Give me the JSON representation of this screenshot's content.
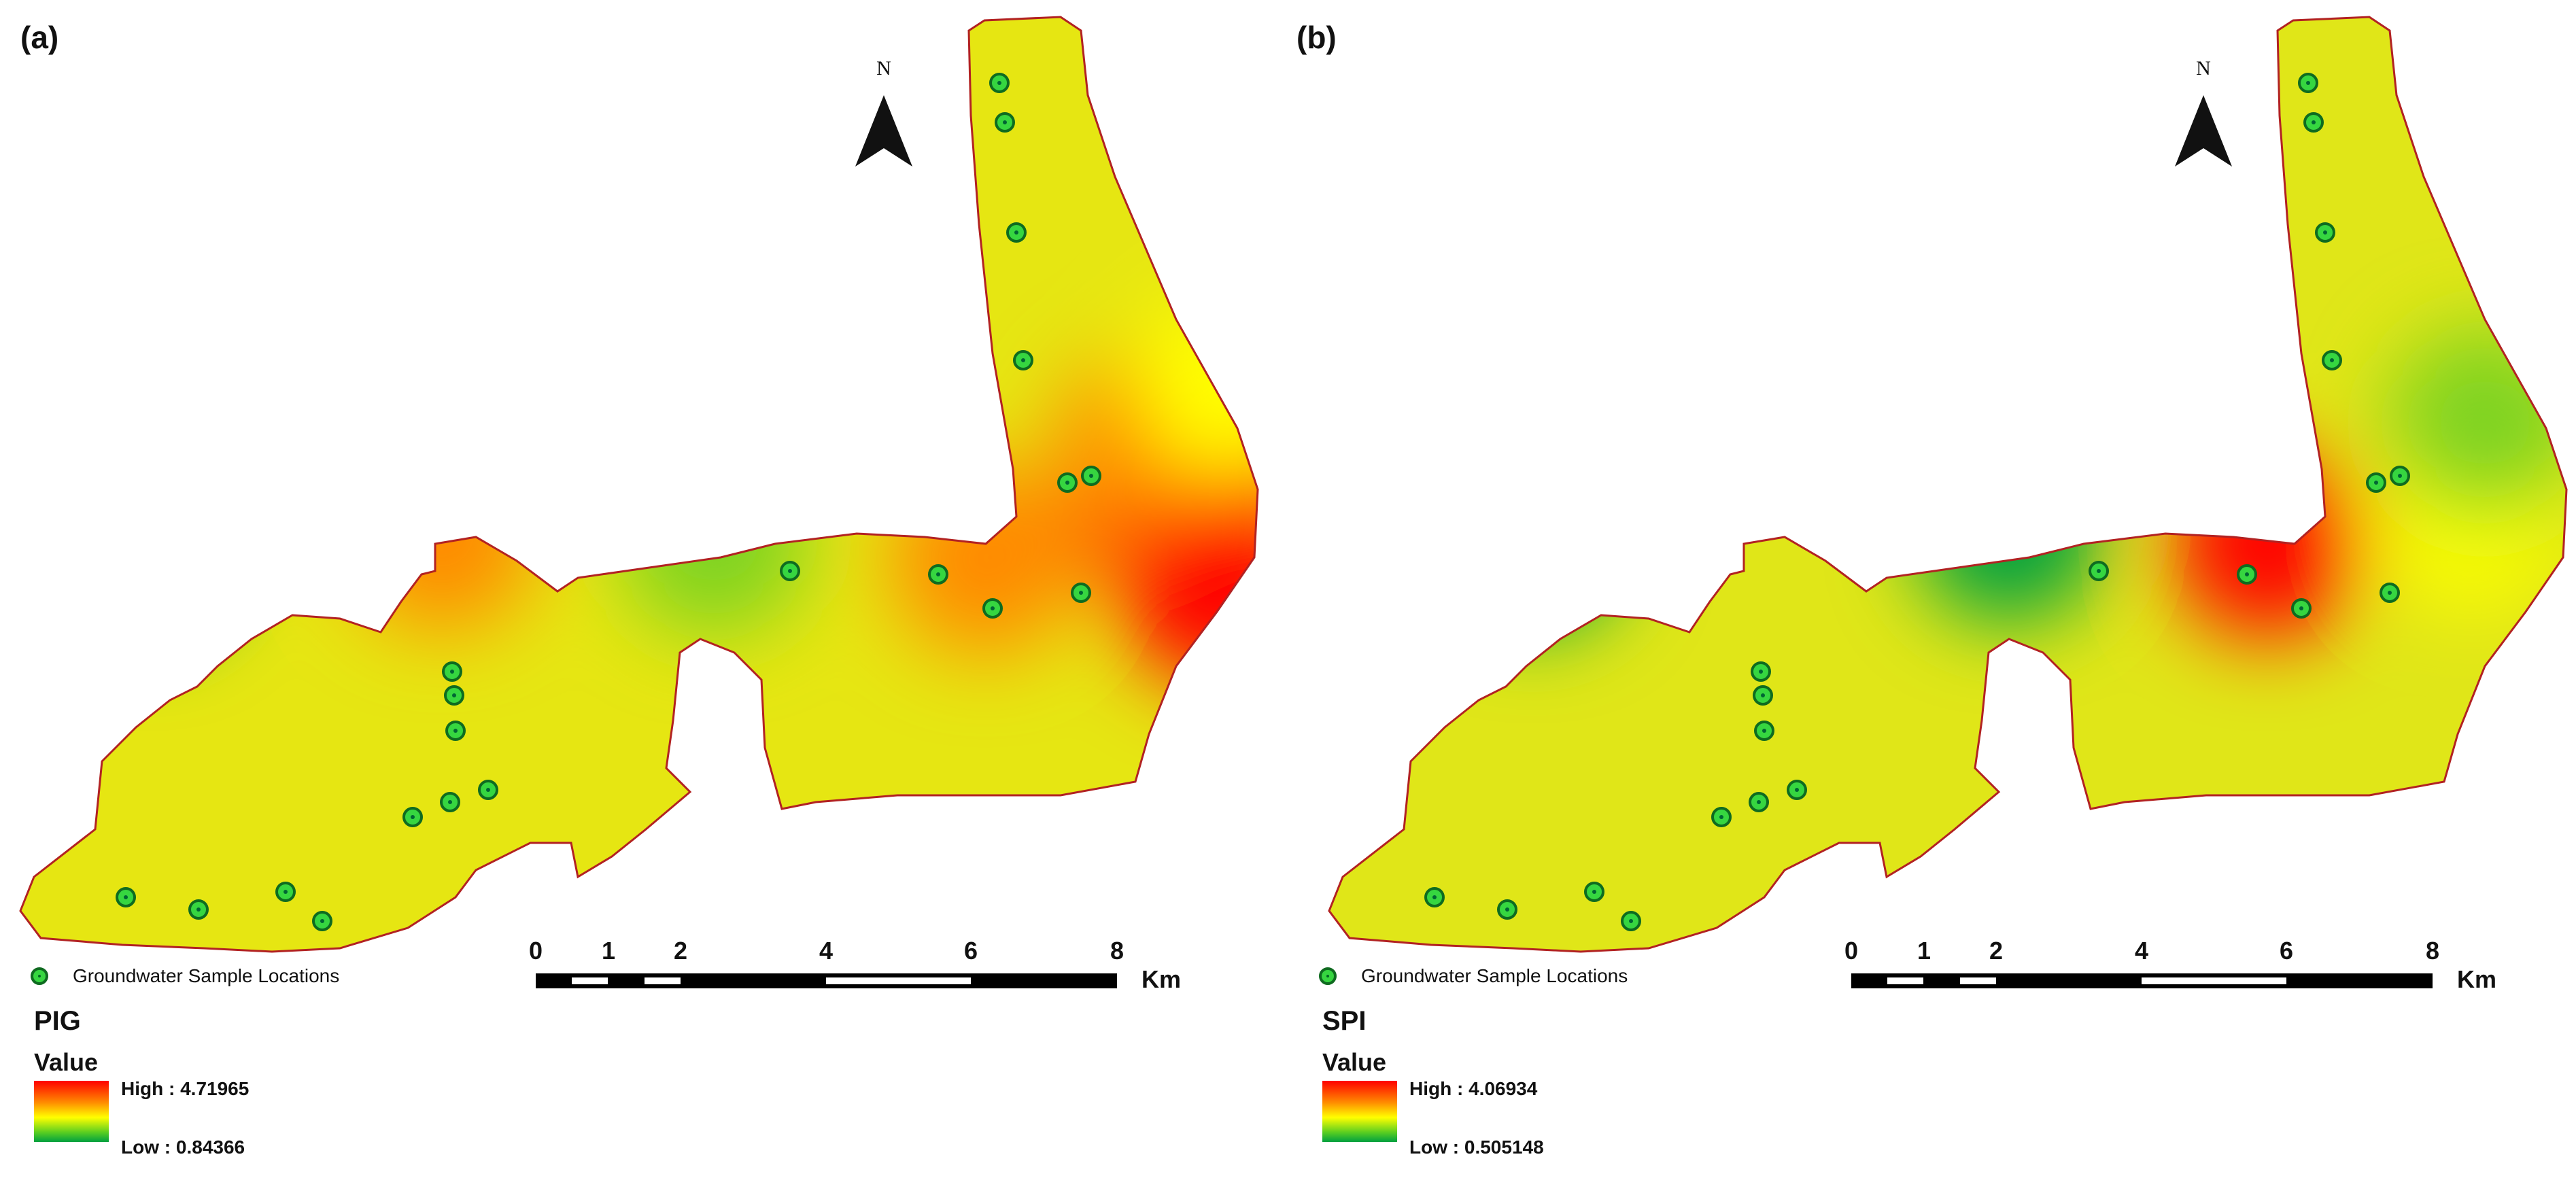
{
  "scale_bar": {
    "ticks": [
      "0",
      "1",
      "2",
      "4",
      "6",
      "8"
    ],
    "unit": "Km"
  },
  "north_label": "N",
  "colors": {
    "high": "#ff0000",
    "mid_high": "#ff8a00",
    "mid": "#ffff00",
    "mid_low": "#7ed321",
    "low": "#00a040",
    "outline": "#b22222",
    "sample_fill": "#36d640",
    "sample_ring": "#0f6b20"
  },
  "panels": [
    {
      "label": "(a)",
      "legend_point": "Groundwater Sample Locations",
      "index_name": "PIG",
      "value_label": "Value",
      "high_label": "High : 4.71965",
      "low_label": "Low : 0.84366",
      "zones": [
        {
          "at": [
            660,
            110
          ],
          "level": "low"
        },
        {
          "at": [
            650,
            330
          ],
          "level": "mid_high"
        },
        {
          "at": [
            655,
            530
          ],
          "level": "mid_low"
        },
        {
          "at": [
            680,
            730
          ],
          "level": "mid_high"
        },
        {
          "at": [
            610,
            860
          ],
          "level": "high"
        },
        {
          "at": [
            620,
            910
          ],
          "level": "high"
        },
        {
          "at": [
            540,
            850
          ],
          "level": "mid_high"
        },
        {
          "at": [
            720,
            900
          ],
          "level": "high"
        },
        {
          "at": [
            460,
            910
          ],
          "level": "mid"
        },
        {
          "at": [
            280,
            990
          ],
          "level": "low"
        },
        {
          "at": [
            330,
            1170
          ],
          "level": "low"
        },
        {
          "at": [
            150,
            1100
          ],
          "level": "mid_low"
        },
        {
          "at": [
            100,
            1290
          ],
          "level": "mid"
        },
        {
          "at": [
            470,
            1340
          ],
          "level": "high"
        }
      ]
    },
    {
      "label": "(b)",
      "legend_point": "Groundwater Sample Locations",
      "index_name": "SPI",
      "value_label": "Value",
      "high_label": "High : 4.06934",
      "low_label": "Low : 0.505148",
      "zones": [
        {
          "at": [
            650,
            170
          ],
          "level": "low"
        },
        {
          "at": [
            640,
            520
          ],
          "level": "low"
        },
        {
          "at": [
            660,
            710
          ],
          "level": "high"
        },
        {
          "at": [
            620,
            860
          ],
          "level": "mid"
        },
        {
          "at": [
            510,
            870
          ],
          "level": "mid_low"
        },
        {
          "at": [
            290,
            1000
          ],
          "level": "low"
        },
        {
          "at": [
            280,
            1080
          ],
          "level": "high"
        },
        {
          "at": [
            270,
            1180
          ],
          "level": "high"
        },
        {
          "at": [
            320,
            1180
          ],
          "level": "low"
        },
        {
          "at": [
            170,
            1050
          ],
          "level": "mid_high"
        },
        {
          "at": [
            90,
            1320
          ],
          "level": "low"
        },
        {
          "at": [
            210,
            1360
          ],
          "level": "high"
        },
        {
          "at": [
            150,
            1230
          ],
          "level": "mid_high"
        },
        {
          "at": [
            470,
            1080
          ],
          "level": "mid_low"
        }
      ]
    }
  ]
}
